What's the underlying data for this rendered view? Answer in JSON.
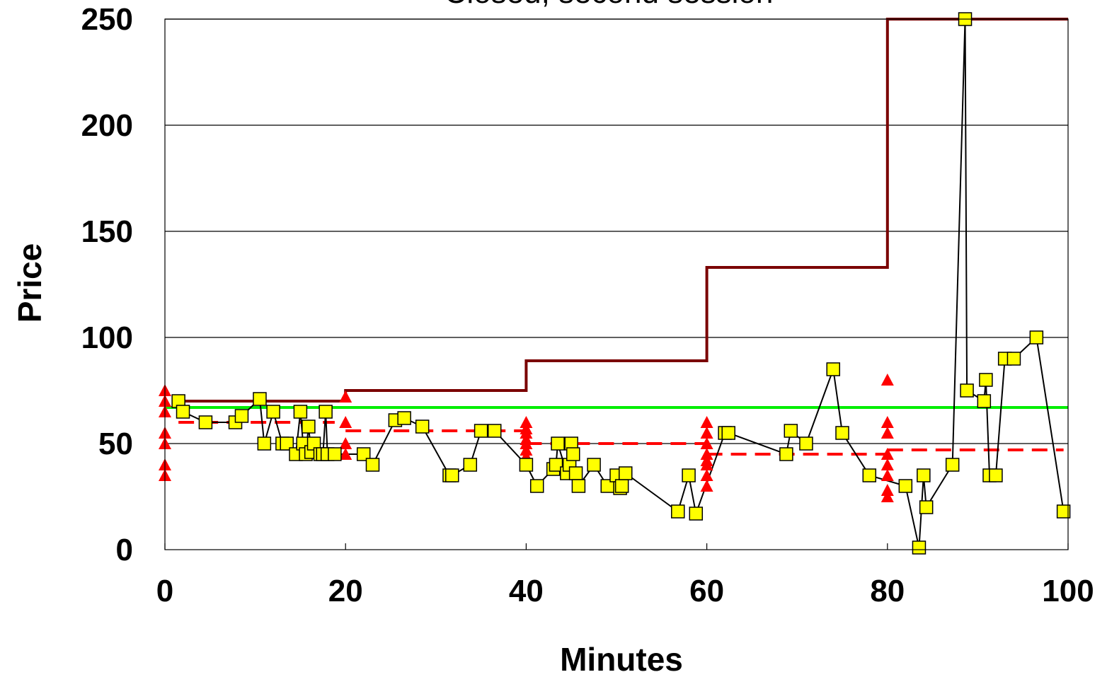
{
  "chart_data": {
    "type": "line",
    "title": "Closed, second session",
    "xlabel": "Minutes",
    "ylabel": "Price",
    "xlim": [
      0,
      100
    ],
    "ylim": [
      0,
      250
    ],
    "x_ticks": [
      "0",
      "20",
      "40",
      "60",
      "80",
      "100"
    ],
    "y_ticks": [
      "0",
      "50",
      "100",
      "150",
      "200",
      "250"
    ],
    "grid": "horizontal",
    "legend": "none",
    "colors": {
      "price_line": "#000000",
      "marker_fill": "#ffff00",
      "upper_step": "#7a0000",
      "equilibrium": "#00ee00",
      "mean_dashed": "#ff0000",
      "triangles": "#ff0000"
    },
    "series": [
      {
        "type": "line-markers",
        "marker": "square",
        "points": [
          [
            1.5,
            70
          ],
          [
            2,
            65
          ],
          [
            4.5,
            60
          ],
          [
            7.8,
            60
          ],
          [
            8.5,
            63
          ],
          [
            10.5,
            71
          ],
          [
            11,
            50
          ],
          [
            12,
            65
          ],
          [
            13,
            50
          ],
          [
            13.5,
            50
          ],
          [
            14.5,
            45
          ],
          [
            15,
            65
          ],
          [
            15.3,
            50
          ],
          [
            15.6,
            45
          ],
          [
            15.9,
            58
          ],
          [
            16.2,
            46
          ],
          [
            16.5,
            50
          ],
          [
            17.2,
            45
          ],
          [
            17.5,
            45
          ],
          [
            17.8,
            65
          ],
          [
            18,
            45
          ],
          [
            18.8,
            45
          ],
          [
            22,
            45
          ],
          [
            23,
            40
          ],
          [
            25.5,
            61
          ],
          [
            26.5,
            62
          ],
          [
            28.5,
            58
          ],
          [
            31.5,
            35
          ],
          [
            31.8,
            35
          ],
          [
            33.8,
            40
          ],
          [
            35,
            56
          ],
          [
            36.5,
            56
          ],
          [
            40,
            40
          ],
          [
            41.2,
            30
          ],
          [
            43,
            38
          ],
          [
            43.3,
            40
          ],
          [
            43.5,
            50
          ],
          [
            44.5,
            36
          ],
          [
            44.8,
            40
          ],
          [
            45,
            50
          ],
          [
            45.2,
            45
          ],
          [
            45.5,
            36
          ],
          [
            45.8,
            30
          ],
          [
            47.5,
            40
          ],
          [
            49,
            30
          ],
          [
            50,
            35
          ],
          [
            50.4,
            29
          ],
          [
            50.6,
            30
          ],
          [
            51,
            36
          ],
          [
            56.8,
            18
          ],
          [
            58,
            35
          ],
          [
            58.8,
            17
          ],
          [
            62,
            55
          ],
          [
            62.4,
            55
          ],
          [
            68.8,
            45
          ],
          [
            69.3,
            56
          ],
          [
            71,
            50
          ],
          [
            74,
            85
          ],
          [
            75,
            55
          ],
          [
            78,
            35
          ],
          [
            82,
            30
          ],
          [
            83.5,
            1
          ],
          [
            84,
            35
          ],
          [
            84.3,
            20
          ],
          [
            87.2,
            40
          ],
          [
            88.6,
            250
          ],
          [
            88.8,
            75
          ],
          [
            90.7,
            70
          ],
          [
            90.9,
            80
          ],
          [
            91.3,
            35
          ],
          [
            92,
            35
          ],
          [
            93,
            90
          ],
          [
            94,
            90
          ],
          [
            96.5,
            100
          ],
          [
            99.5,
            18
          ]
        ]
      },
      {
        "type": "step",
        "points": [
          [
            1.5,
            70
          ],
          [
            20,
            70
          ],
          [
            20,
            75
          ],
          [
            40,
            75
          ],
          [
            40,
            89
          ],
          [
            60,
            89
          ],
          [
            60,
            133
          ],
          [
            80,
            133
          ],
          [
            80,
            250
          ],
          [
            100,
            250
          ]
        ]
      },
      {
        "type": "dashed-step",
        "segments": [
          [
            1.5,
            18.8,
            60
          ],
          [
            20,
            40,
            56
          ],
          [
            40,
            60,
            50
          ],
          [
            60,
            80,
            45
          ],
          [
            80,
            99.5,
            47
          ]
        ]
      },
      {
        "type": "horizontal-line",
        "y": 67,
        "x_range": [
          0,
          100
        ]
      },
      {
        "type": "triangles",
        "points": [
          [
            0,
            75
          ],
          [
            0,
            70
          ],
          [
            0,
            65
          ],
          [
            0,
            55
          ],
          [
            0,
            50
          ],
          [
            0,
            40
          ],
          [
            0,
            35
          ],
          [
            20,
            72
          ],
          [
            20,
            60
          ],
          [
            20,
            50
          ],
          [
            20,
            45
          ],
          [
            40,
            60
          ],
          [
            40,
            57
          ],
          [
            40,
            55
          ],
          [
            40,
            52
          ],
          [
            40,
            50
          ],
          [
            40,
            47
          ],
          [
            40,
            44
          ],
          [
            40,
            40
          ],
          [
            60,
            60
          ],
          [
            60,
            55
          ],
          [
            60,
            50
          ],
          [
            60,
            45
          ],
          [
            60,
            42
          ],
          [
            60,
            40
          ],
          [
            60,
            35
          ],
          [
            60,
            30
          ],
          [
            80,
            80
          ],
          [
            80,
            60
          ],
          [
            80,
            55
          ],
          [
            80,
            45
          ],
          [
            80,
            40
          ],
          [
            80,
            35
          ],
          [
            80,
            28
          ],
          [
            80,
            25
          ]
        ]
      }
    ]
  }
}
